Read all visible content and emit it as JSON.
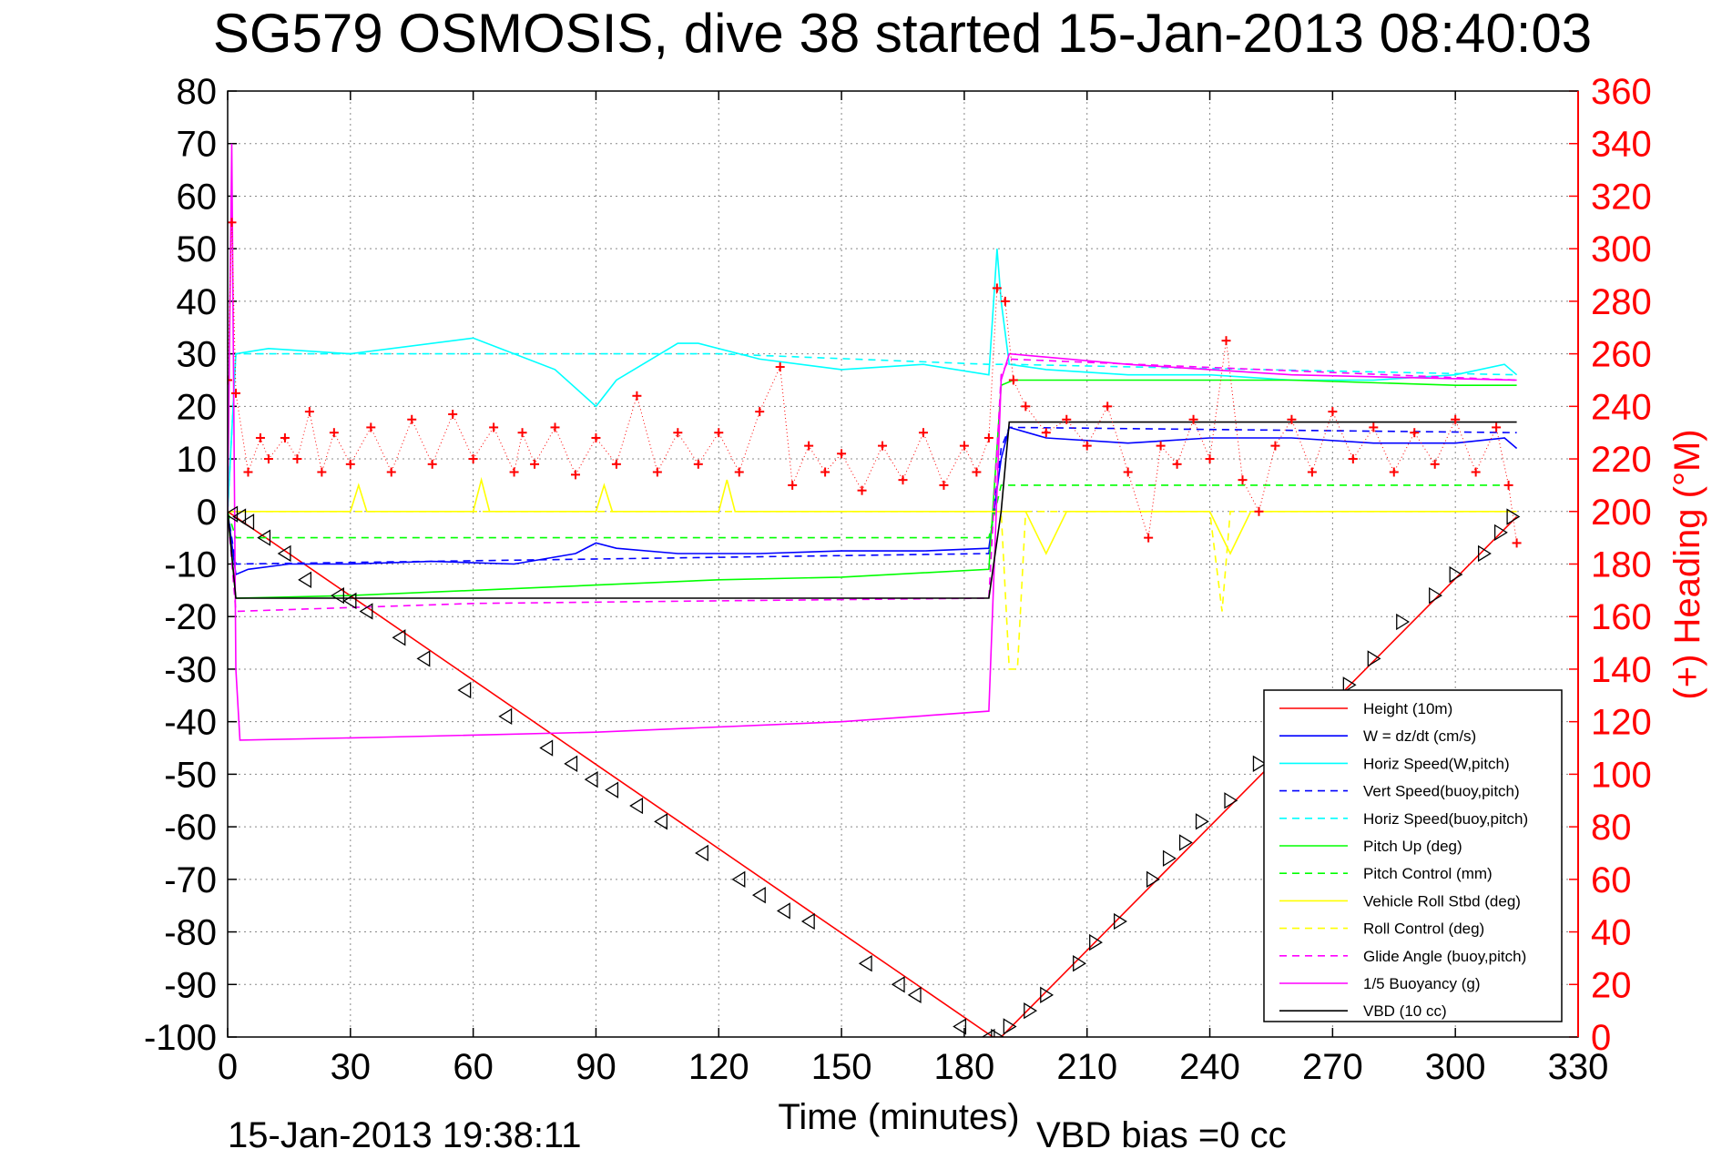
{
  "chart_data": {
    "type": "line",
    "title": "SG579 OSMOSIS, dive 38 started 15-Jan-2013 08:40:03",
    "xlabel": "Time (minutes)",
    "ylabel_right": "(+) Heading (°M)",
    "xlim": [
      0,
      330
    ],
    "ylim": [
      -100,
      80
    ],
    "ylim_right": [
      0,
      360
    ],
    "x_ticks": [
      "0",
      "30",
      "60",
      "90",
      "120",
      "150",
      "180",
      "210",
      "240",
      "270",
      "300",
      "330"
    ],
    "y_ticks": [
      "80",
      "70",
      "60",
      "50",
      "40",
      "30",
      "20",
      "10",
      "0",
      "-10",
      "-20",
      "-30",
      "-40",
      "-50",
      "-60",
      "-70",
      "-80",
      "-90",
      "-100"
    ],
    "y_right_ticks": [
      "360",
      "340",
      "320",
      "300",
      "280",
      "260",
      "240",
      "220",
      "200",
      "180",
      "160",
      "140",
      "120",
      "100",
      "80",
      "60",
      "40",
      "20",
      "0"
    ],
    "grid": true,
    "legend_position": "bottom-right",
    "footer_left": "15-Jan-2013 19:38:11",
    "footer_right": "VBD bias =0 cc",
    "series": [
      {
        "name": "Height (10m)",
        "color": "#ff0000",
        "style": "solid",
        "x": [
          0,
          187,
          189,
          315
        ],
        "y": [
          0,
          -100,
          -100,
          -1
        ]
      },
      {
        "name": "W = dz/dt (cm/s)",
        "color": "#0000ff",
        "style": "solid",
        "x": [
          0,
          2,
          5,
          15,
          30,
          50,
          70,
          85,
          90,
          95,
          110,
          130,
          150,
          170,
          186,
          189,
          191,
          200,
          220,
          240,
          260,
          280,
          300,
          312,
          315
        ],
        "y": [
          0,
          -12,
          -11,
          -10,
          -10,
          -9.5,
          -10,
          -8,
          -6,
          -7,
          -8,
          -8,
          -7.5,
          -7.5,
          -7,
          10,
          16,
          14,
          13,
          14,
          14,
          13,
          13,
          14,
          12
        ]
      },
      {
        "name": "Horiz Speed(W,pitch)",
        "color": "#00ffff",
        "style": "solid",
        "x": [
          0,
          2,
          10,
          30,
          60,
          80,
          90,
          95,
          110,
          115,
          130,
          150,
          170,
          186,
          188,
          189,
          191,
          200,
          220,
          240,
          260,
          280,
          300,
          312,
          315
        ],
        "y": [
          0,
          30,
          31,
          30,
          33,
          27,
          20,
          25,
          32,
          32,
          29,
          27,
          28,
          26,
          50,
          40,
          28,
          27,
          26,
          26,
          25,
          25,
          26,
          28,
          26
        ]
      },
      {
        "name": "Vert Speed(buoy,pitch)",
        "color": "#0000ff",
        "style": "dashed",
        "x": [
          0,
          2,
          186,
          189,
          191,
          315
        ],
        "y": [
          0,
          -10,
          -8,
          12,
          16,
          15
        ]
      },
      {
        "name": "Horiz Speed(buoy,pitch)",
        "color": "#00ffff",
        "style": "dashed",
        "x": [
          0,
          2,
          120,
          186,
          191,
          315
        ],
        "y": [
          0,
          30,
          30,
          28,
          28,
          26
        ]
      },
      {
        "name": "Pitch Up (deg)",
        "color": "#00ff00",
        "style": "solid",
        "x": [
          0,
          2,
          30,
          60,
          90,
          120,
          150,
          186,
          189,
          192,
          220,
          260,
          300,
          315
        ],
        "y": [
          0,
          -16.5,
          -16,
          -15,
          -14,
          -13,
          -12.5,
          -11,
          24,
          25,
          25,
          25,
          24,
          24
        ]
      },
      {
        "name": "Pitch Control (mm)",
        "color": "#00ff00",
        "style": "dashed",
        "x": [
          0,
          2,
          186,
          189,
          315
        ],
        "y": [
          0,
          -5,
          -5,
          5,
          5
        ]
      },
      {
        "name": "Vehicle Roll Stbd (deg)",
        "color": "#ffff00",
        "style": "solid",
        "x": [
          0,
          2,
          30,
          32,
          34,
          60,
          62,
          64,
          90,
          92,
          94,
          120,
          122,
          124,
          150,
          186,
          189,
          195,
          200,
          205,
          240,
          245,
          250,
          270,
          290,
          315
        ],
        "y": [
          0,
          0,
          0,
          5,
          0,
          0,
          6,
          0,
          0,
          5,
          0,
          0,
          6,
          0,
          0,
          0,
          0,
          0,
          -8,
          0,
          0,
          -8,
          0,
          0,
          0,
          0
        ]
      },
      {
        "name": "Roll Control (deg)",
        "color": "#ffff00",
        "style": "dashed",
        "x": [
          0,
          2,
          186,
          189,
          191,
          193,
          195,
          240,
          243,
          245,
          315
        ],
        "y": [
          0,
          0,
          0,
          0,
          -30,
          -30,
          0,
          0,
          -19,
          0,
          0
        ]
      },
      {
        "name": "Glide Angle (buoy,pitch)",
        "color": "#ff00ff",
        "style": "dashed",
        "x": [
          0,
          2,
          60,
          120,
          186,
          189,
          191,
          315
        ],
        "y": [
          0,
          -19,
          -17.5,
          -17,
          -16.5,
          26,
          29,
          25
        ]
      },
      {
        "name": "1/5 Buoyancy (g)",
        "color": "#ff00ff",
        "style": "solid",
        "x": [
          0,
          1,
          2,
          3,
          35,
          90,
          150,
          186,
          189,
          191,
          220,
          260,
          315
        ],
        "y": [
          0,
          70,
          -30,
          -43.5,
          -43,
          -42,
          -40,
          -38,
          25,
          30,
          28,
          26,
          25
        ]
      },
      {
        "name": "VBD (10 cc)",
        "color": "#000000",
        "style": "solid",
        "x": [
          0,
          2,
          186,
          189,
          191,
          315
        ],
        "y": [
          0,
          -16.5,
          -16.5,
          0,
          17,
          17
        ]
      }
    ],
    "heading_series": {
      "color": "#ff0000",
      "marker": "+",
      "x": [
        0,
        1,
        2,
        5,
        8,
        10,
        14,
        17,
        20,
        23,
        26,
        30,
        35,
        40,
        45,
        50,
        55,
        60,
        65,
        70,
        72,
        75,
        80,
        85,
        90,
        95,
        100,
        105,
        110,
        115,
        120,
        125,
        130,
        135,
        138,
        142,
        146,
        150,
        155,
        160,
        165,
        170,
        175,
        180,
        183,
        186,
        188,
        190,
        192,
        195,
        200,
        205,
        210,
        215,
        220,
        225,
        228,
        232,
        236,
        240,
        244,
        248,
        252,
        256,
        260,
        265,
        270,
        275,
        280,
        285,
        290,
        295,
        300,
        305,
        310,
        313,
        315
      ],
      "y": [
        250,
        310,
        245,
        215,
        228,
        220,
        228,
        220,
        238,
        215,
        230,
        218,
        232,
        215,
        235,
        218,
        237,
        220,
        232,
        215,
        230,
        218,
        232,
        214,
        228,
        218,
        244,
        215,
        230,
        218,
        230,
        215,
        238,
        255,
        210,
        225,
        215,
        222,
        208,
        225,
        212,
        230,
        210,
        225,
        215,
        228,
        285,
        280,
        250,
        240,
        230,
        235,
        225,
        240,
        215,
        190,
        225,
        218,
        235,
        220,
        265,
        212,
        200,
        225,
        235,
        215,
        238,
        220,
        232,
        215,
        230,
        218,
        235,
        215,
        232,
        210,
        188
      ]
    },
    "height_markers": {
      "x": [
        1,
        3,
        5,
        9,
        14,
        19,
        27,
        30,
        34,
        42,
        48,
        58,
        68,
        78,
        84,
        89,
        94,
        100,
        106,
        116,
        125,
        130,
        136,
        142,
        156,
        164,
        168,
        179,
        186,
        188,
        191,
        196,
        200,
        208,
        212,
        218,
        226,
        230,
        234,
        238,
        245,
        252,
        258,
        263,
        268,
        274,
        280,
        287,
        295,
        300,
        307,
        311,
        314
      ],
      "y": [
        -0.5,
        -1,
        -2,
        -5,
        -8,
        -13,
        -16,
        -17,
        -19,
        -24,
        -28,
        -34,
        -39,
        -45,
        -48,
        -51,
        -53,
        -56,
        -59,
        -65,
        -70,
        -73,
        -76,
        -78,
        -86,
        -90,
        -92,
        -98,
        -100,
        -100,
        -98,
        -95,
        -92,
        -86,
        -82,
        -78,
        -70,
        -66,
        -63,
        -59,
        -55,
        -48,
        -44,
        -41,
        -38,
        -33,
        -28,
        -21,
        -16,
        -12,
        -8,
        -4,
        -1
      ]
    }
  }
}
